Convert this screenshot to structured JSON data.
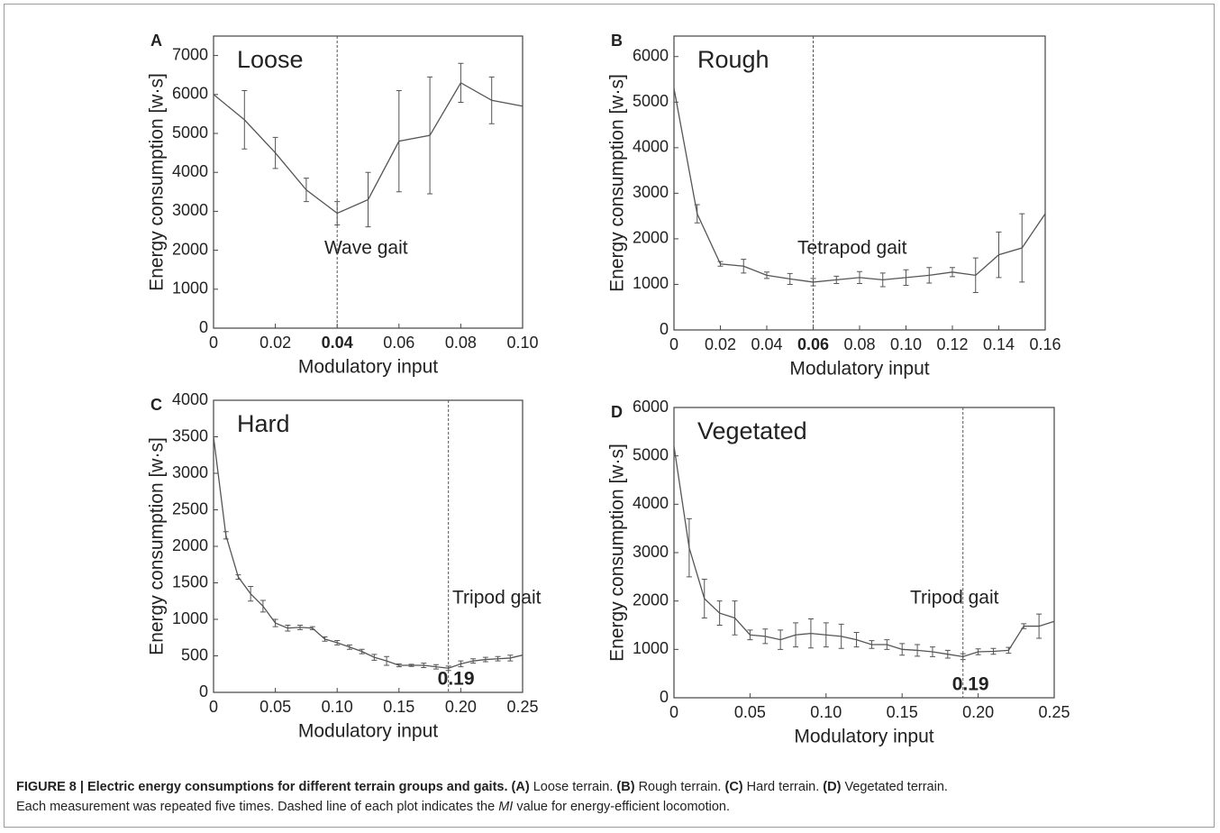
{
  "chart_data": [
    {
      "type": "line",
      "panel": "A",
      "title": "Loose",
      "annotation": "Wave gait",
      "vline": 0.04,
      "xlabel": "Modulatory input",
      "ylabel": "Energy consumption [w·s]",
      "x": [
        0,
        0.01,
        0.02,
        0.03,
        0.04,
        0.05,
        0.06,
        0.07,
        0.08,
        0.09,
        0.1
      ],
      "values": [
        6000,
        5350,
        4500,
        3550,
        2950,
        3300,
        4800,
        4950,
        6300,
        5850,
        5700
      ],
      "errors": [
        null,
        750,
        400,
        300,
        300,
        700,
        1300,
        1500,
        500,
        600,
        null
      ],
      "color": "#555555",
      "xlim": [
        0,
        0.1
      ],
      "xticks": [
        0,
        0.02,
        0.04,
        0.06,
        0.08,
        {
          "value": 0.1,
          "label": "0.10"
        }
      ],
      "ylim": [
        0,
        7500
      ],
      "yticks": [
        0,
        1000,
        2000,
        3000,
        4000,
        5000,
        6000,
        7000
      ]
    },
    {
      "type": "line",
      "panel": "B",
      "title": "Rough",
      "annotation": "Tetrapod gait",
      "vline": 0.06,
      "xlabel": "Modulatory input",
      "ylabel": "Energy consumption [w·s]",
      "x": [
        0,
        0.01,
        0.02,
        0.03,
        0.04,
        0.05,
        0.06,
        0.07,
        0.08,
        0.09,
        0.1,
        0.11,
        0.12,
        0.13,
        0.14,
        0.15,
        0.16
      ],
      "values": [
        5300,
        2550,
        1450,
        1400,
        1200,
        1120,
        1050,
        1100,
        1150,
        1100,
        1150,
        1200,
        1270,
        1200,
        1650,
        1800,
        2550
      ],
      "errors": [
        null,
        200,
        50,
        150,
        70,
        120,
        80,
        80,
        130,
        150,
        170,
        170,
        100,
        380,
        500,
        750,
        null
      ],
      "color": "#555555",
      "xlim": [
        0,
        0.16
      ],
      "xticks": [
        0,
        0.02,
        0.04,
        0.06,
        0.08,
        {
          "value": 0.1,
          "label": "0.10"
        },
        0.12,
        0.14,
        0.16
      ],
      "ylim": [
        0,
        6450
      ],
      "yticks": [
        0,
        1000,
        2000,
        3000,
        4000,
        5000,
        6000
      ]
    },
    {
      "type": "line",
      "panel": "C",
      "title": "Hard",
      "annotation": "Tripod gait",
      "vline": 0.19,
      "xlabel": "Modulatory input",
      "ylabel": "Energy consumption [w·s]",
      "x": [
        0,
        0.01,
        0.02,
        0.03,
        0.04,
        0.05,
        0.06,
        0.07,
        0.08,
        0.09,
        0.1,
        0.11,
        0.12,
        0.13,
        0.14,
        0.15,
        0.16,
        0.17,
        0.18,
        0.19,
        0.2,
        0.21,
        0.22,
        0.23,
        0.24,
        0.25
      ],
      "values": [
        3500,
        2150,
        1580,
        1350,
        1180,
        950,
        880,
        890,
        880,
        730,
        680,
        620,
        560,
        480,
        430,
        370,
        370,
        370,
        350,
        330,
        390,
        430,
        450,
        460,
        470,
        510
      ],
      "errors": [
        null,
        50,
        30,
        100,
        80,
        50,
        40,
        30,
        20,
        30,
        30,
        30,
        30,
        40,
        60,
        20,
        15,
        30,
        30,
        30,
        40,
        30,
        30,
        30,
        40,
        null
      ],
      "color": "#555555",
      "xlim": [
        0,
        0.25
      ],
      "xticks": [
        0,
        0.05,
        {
          "value": 0.1,
          "label": "0.10"
        },
        0.15,
        {
          "value": 0.2,
          "label": "0.20"
        },
        0.25
      ],
      "ylim": [
        0,
        4000
      ],
      "yticks": [
        0,
        500,
        1000,
        1500,
        2000,
        2500,
        3000,
        3500,
        4000
      ]
    },
    {
      "type": "line",
      "panel": "D",
      "title": "Vegetated",
      "annotation": "Tripod gait",
      "vline": 0.19,
      "xlabel": "Modulatory input",
      "ylabel": "Energy consumption [w·s]",
      "x": [
        0,
        0.01,
        0.02,
        0.03,
        0.04,
        0.05,
        0.06,
        0.07,
        0.08,
        0.09,
        0.1,
        0.11,
        0.12,
        0.13,
        0.14,
        0.15,
        0.16,
        0.17,
        0.18,
        0.19,
        0.2,
        0.21,
        0.22,
        0.23,
        0.24,
        0.25
      ],
      "values": [
        5200,
        3100,
        2050,
        1750,
        1650,
        1300,
        1270,
        1200,
        1300,
        1330,
        1300,
        1270,
        1200,
        1100,
        1100,
        1000,
        980,
        950,
        900,
        850,
        950,
        960,
        980,
        1480,
        1480,
        1580
      ],
      "errors": [
        null,
        600,
        400,
        250,
        350,
        100,
        150,
        200,
        250,
        300,
        250,
        250,
        150,
        80,
        100,
        120,
        120,
        100,
        80,
        60,
        60,
        60,
        60,
        50,
        250,
        null
      ],
      "color": "#555555",
      "xlim": [
        0,
        0.25
      ],
      "xticks": [
        0,
        0.05,
        {
          "value": 0.1,
          "label": "0.10"
        },
        0.15,
        {
          "value": 0.2,
          "label": "0.20"
        },
        0.25
      ],
      "ylim": [
        0,
        6000
      ],
      "yticks": [
        0,
        1000,
        2000,
        3000,
        4000,
        5000,
        6000
      ]
    }
  ],
  "caption": {
    "figure": "FIGURE 8 | Electric energy consumptions for different terrain groups and gaits.",
    "a": "(A)",
    "a_text": "Loose terrain.",
    "b": "(B)",
    "b_text": "Rough terrain.",
    "c": "(C)",
    "c_text": "Hard terrain.",
    "d": "(D)",
    "d_text": "Vegetated terrain.",
    "note": "Each measurement was repeated five times. Dashed line of each plot indicates the",
    "mi": "MI",
    "note_end": "value for energy-efficient locomotion."
  }
}
